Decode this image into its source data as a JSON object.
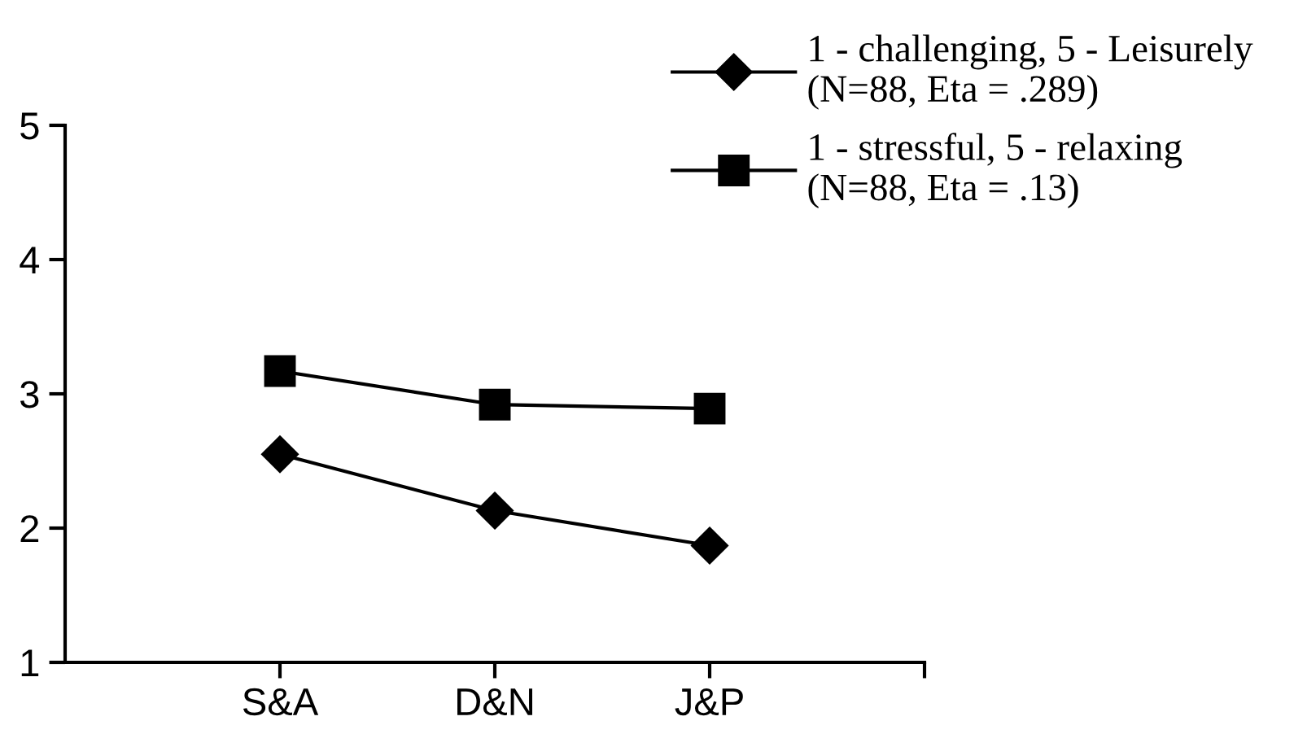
{
  "chart_data": {
    "type": "line",
    "categories": [
      "S&A",
      "D&N",
      "J&P"
    ],
    "series": [
      {
        "name": "1 - challenging, 5 - Leisurely\n(N=88, Eta = .289)",
        "color": "#000000",
        "marker": "diamond",
        "values": [
          2.55,
          2.13,
          1.87
        ]
      },
      {
        "name": "1 - stressful, 5 - relaxing\n(N=88, Eta = .13)",
        "color": "#000000",
        "marker": "square",
        "values": [
          3.17,
          2.92,
          2.89
        ]
      }
    ],
    "ylim": [
      1,
      5
    ],
    "yticks": [
      1,
      2,
      3,
      4,
      5
    ],
    "grid": false,
    "legend": "top right",
    "line_style": "solid"
  }
}
